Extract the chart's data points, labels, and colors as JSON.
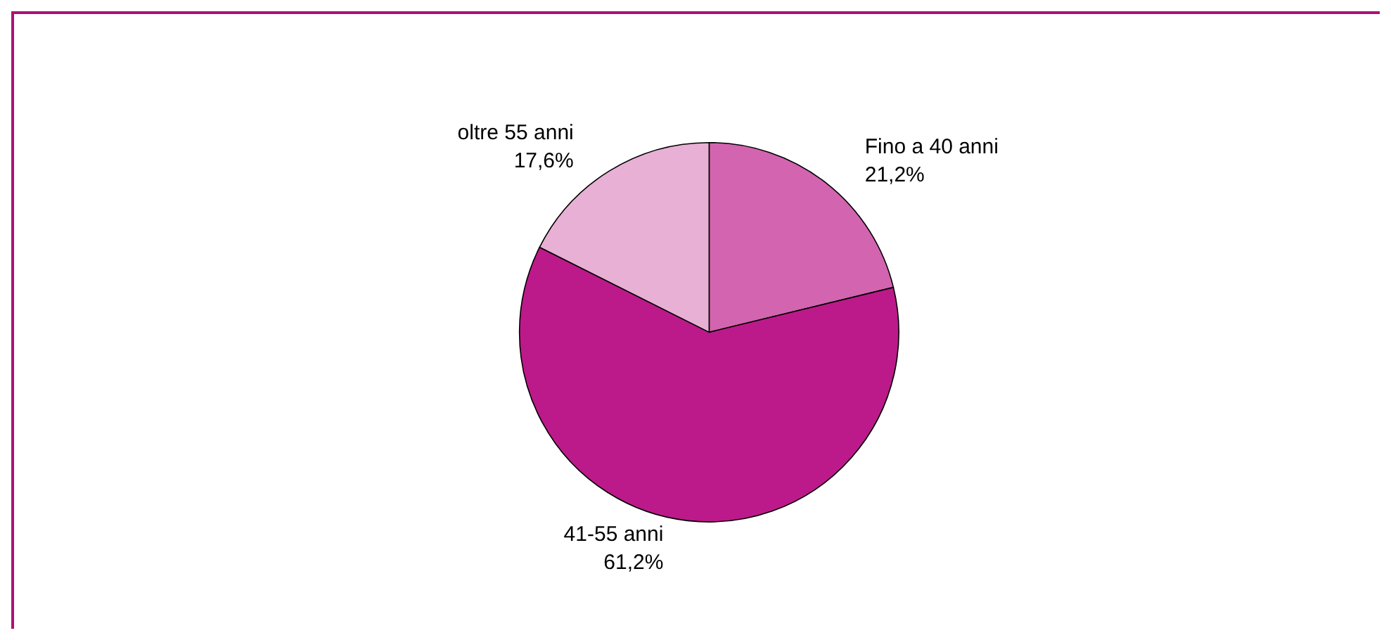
{
  "chart_data": {
    "type": "pie",
    "categories": [
      "Fino a 40 anni",
      "41-55 anni",
      "oltre 55 anni"
    ],
    "values": [
      21.2,
      61.2,
      17.6
    ],
    "colors": [
      "#d264b0",
      "#bc1a8a",
      "#e8b0d4"
    ],
    "value_labels": [
      "21,2%",
      "61,2%",
      "17,6%"
    ]
  }
}
